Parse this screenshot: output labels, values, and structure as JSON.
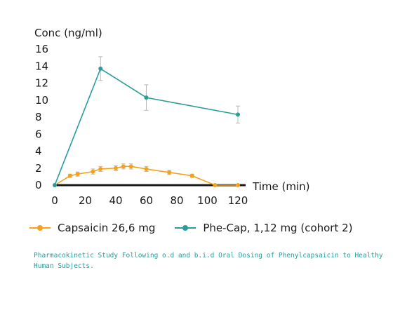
{
  "chart_data": {
    "type": "line",
    "ylabel": "Conc (ng/ml)",
    "xlabel": "Time (min)",
    "yticks": [
      0,
      2,
      4,
      6,
      8,
      10,
      12,
      14,
      16
    ],
    "xticks": [
      0,
      20,
      40,
      60,
      80,
      100,
      120
    ],
    "ylim": [
      0,
      16
    ],
    "xlim": [
      0,
      120
    ],
    "grid": false,
    "legend_position": "bottom",
    "series": [
      {
        "name": "Capsaicin 26,6 mg",
        "color": "#f5a11c",
        "points": [
          {
            "x": 0,
            "y": 0,
            "err": 0
          },
          {
            "x": 10,
            "y": 1.1,
            "err": 0.2
          },
          {
            "x": 15,
            "y": 1.3,
            "err": 0.25
          },
          {
            "x": 25,
            "y": 1.6,
            "err": 0.3
          },
          {
            "x": 30,
            "y": 1.9,
            "err": 0.3
          },
          {
            "x": 40,
            "y": 2.0,
            "err": 0.3
          },
          {
            "x": 45,
            "y": 2.2,
            "err": 0.3
          },
          {
            "x": 50,
            "y": 2.2,
            "err": 0.3
          },
          {
            "x": 60,
            "y": 1.9,
            "err": 0.3
          },
          {
            "x": 75,
            "y": 1.5,
            "err": 0.25
          },
          {
            "x": 90,
            "y": 1.1,
            "err": 0.2
          },
          {
            "x": 105,
            "y": 0,
            "err": 0
          },
          {
            "x": 120,
            "y": 0,
            "err": 0
          }
        ]
      },
      {
        "name": "Phe-Cap, 1,12 mg (cohort 2)",
        "color": "#2a9d9a",
        "points": [
          {
            "x": 0,
            "y": 0,
            "err": 0
          },
          {
            "x": 30,
            "y": 13.7,
            "err": 1.4
          },
          {
            "x": 60,
            "y": 10.3,
            "err": 1.5
          },
          {
            "x": 120,
            "y": 8.3,
            "err": 1.0
          }
        ]
      }
    ]
  },
  "caption": "Pharmacokinetic Study Following o.d and b.i.d Oral Dosing of Phenylcapsaicin to Healthy Human Subjects."
}
